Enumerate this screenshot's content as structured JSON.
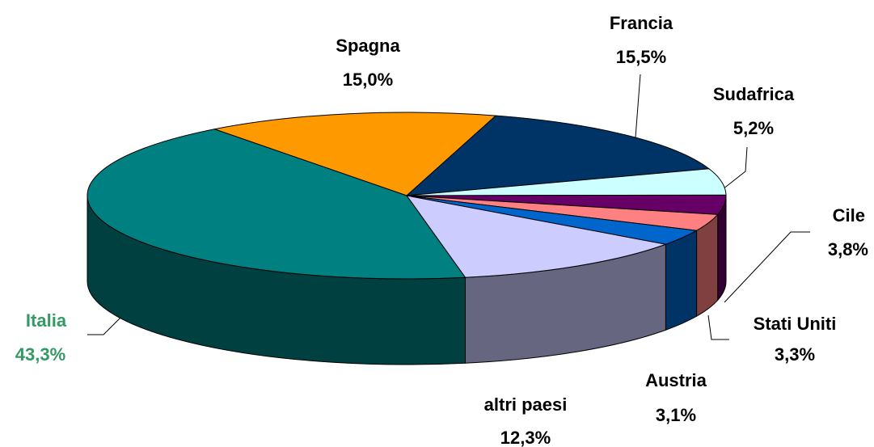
{
  "chart_data": {
    "type": "pie",
    "categories": [
      "Spagna",
      "Francia",
      "Sudafrica",
      "Cile",
      "Stati Uniti",
      "Austria",
      "altri paesi",
      "Italia"
    ],
    "values": [
      15.0,
      15.5,
      5.2,
      3.8,
      3.3,
      3.1,
      12.3,
      43.3
    ],
    "value_labels": [
      "15,0%",
      "15,5%",
      "5,2%",
      "3,8%",
      "3,3%",
      "3,1%",
      "12,3%",
      "43,3%"
    ],
    "colors": [
      "#ff9900",
      "#003366",
      "#ccffff",
      "#660066",
      "#ff8080",
      "#0066cc",
      "#ccccff",
      "#008080"
    ]
  }
}
